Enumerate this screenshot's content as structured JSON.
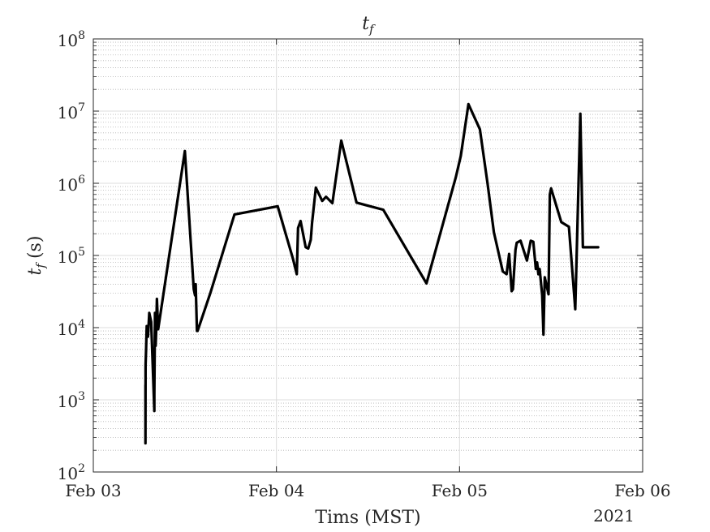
{
  "chart_data": {
    "type": "line",
    "title_base": "t",
    "title_sub": "f",
    "xlabel": "Tims (MST)",
    "ylabel_base": "t",
    "ylabel_sub": "f",
    "ylabel_unit": "(s)",
    "year_label": "2021",
    "x_scale": "time",
    "x_range": [
      "2021-02-03",
      "2021-02-06"
    ],
    "x_ticks": [
      {
        "date": "2021-02-03",
        "label": "Feb 03"
      },
      {
        "date": "2021-02-04",
        "label": "Feb 04"
      },
      {
        "date": "2021-02-05",
        "label": "Feb 05"
      },
      {
        "date": "2021-02-06",
        "label": "Feb 06"
      }
    ],
    "y_scale": "log",
    "y_range": [
      100,
      100000000
    ],
    "y_ticks": [
      {
        "value": 100,
        "base": "10",
        "exp": "2"
      },
      {
        "value": 1000,
        "base": "10",
        "exp": "3"
      },
      {
        "value": 10000,
        "base": "10",
        "exp": "4"
      },
      {
        "value": 100000,
        "base": "10",
        "exp": "5"
      },
      {
        "value": 1000000,
        "base": "10",
        "exp": "6"
      },
      {
        "value": 10000000,
        "base": "10",
        "exp": "7"
      },
      {
        "value": 100000000,
        "base": "10",
        "exp": "8"
      }
    ],
    "grid": true,
    "minor_grid": true,
    "line_color": "#000000",
    "series": [
      {
        "x": [
          "2021-02-03 06:50",
          "2021-02-03 06:50",
          "2021-02-03 06:51",
          "2021-02-03 06:55",
          "2021-02-03 07:00",
          "2021-02-03 07:10",
          "2021-02-03 07:20",
          "2021-02-03 07:35",
          "2021-02-03 08:00",
          "2021-02-03 08:00",
          "2021-02-03 08:05",
          "2021-02-03 08:10",
          "2021-02-03 08:15",
          "2021-02-03 08:20",
          "2021-02-03 08:30",
          "2021-02-03 08:30",
          "2021-02-03 12:00",
          "2021-02-03 13:10",
          "2021-02-03 13:20",
          "2021-02-03 13:25",
          "2021-02-03 13:35",
          "2021-02-03 13:40",
          "2021-02-03 15:20",
          "2021-02-03 18:30",
          "2021-02-04 00:10",
          "2021-02-04 02:10",
          "2021-02-04 02:40",
          "2021-02-04 02:50",
          "2021-02-04 03:10",
          "2021-02-04 03:50",
          "2021-02-04 04:10",
          "2021-02-04 04:30",
          "2021-02-04 04:40",
          "2021-02-04 05:10",
          "2021-02-04 06:00",
          "2021-02-04 06:30",
          "2021-02-04 07:20",
          "2021-02-04 08:30",
          "2021-02-04 10:30",
          "2021-02-04 11:40",
          "2021-02-04 14:00",
          "2021-02-04 19:40",
          "2021-02-04 23:30",
          "2021-02-05 00:10",
          "2021-02-05 01:10",
          "2021-02-05 02:40",
          "2021-02-05 03:40",
          "2021-02-05 04:30",
          "2021-02-05 05:40",
          "2021-02-05 06:10",
          "2021-02-05 06:30",
          "2021-02-05 06:50",
          "2021-02-05 07:00",
          "2021-02-05 07:20",
          "2021-02-05 07:30",
          "2021-02-05 08:00",
          "2021-02-05 08:50",
          "2021-02-05 09:20",
          "2021-02-05 09:40",
          "2021-02-05 10:00",
          "2021-02-05 10:10",
          "2021-02-05 10:20",
          "2021-02-05 10:30",
          "2021-02-05 10:50",
          "2021-02-05 11:00",
          "2021-02-05 11:10",
          "2021-02-05 11:40",
          "2021-02-05 11:40",
          "2021-02-05 11:50",
          "2021-02-05 12:00",
          "2021-02-05 13:20",
          "2021-02-05 14:20",
          "2021-02-05 15:10",
          "2021-02-05 15:50",
          "2021-02-05 16:10",
          "2021-02-05 17:20",
          "2021-02-05 18:10"
        ],
        "y": [
          1600,
          250,
          3000,
          5000,
          10500,
          7500,
          16000,
          12000,
          700,
          1200,
          16000,
          5600,
          9500,
          25000,
          9500,
          9500,
          2800000,
          34000,
          28000,
          40000,
          9000,
          9000,
          30000,
          370000,
          480000,
          90000,
          55000,
          240000,
          300000,
          130000,
          125000,
          165000,
          280000,
          870000,
          570000,
          650000,
          530000,
          3900000,
          540000,
          500000,
          430000,
          41000,
          1200000,
          2400000,
          12500000,
          5600000,
          1000000,
          210000,
          60000,
          55000,
          105000,
          32000,
          34000,
          120000,
          150000,
          160000,
          85000,
          160000,
          155000,
          65000,
          80000,
          55000,
          65000,
          28000,
          8000,
          50000,
          29000,
          29000,
          700000,
          850000,
          290000,
          250000,
          18000,
          9200000,
          130000,
          130000,
          130000
        ]
      }
    ]
  }
}
